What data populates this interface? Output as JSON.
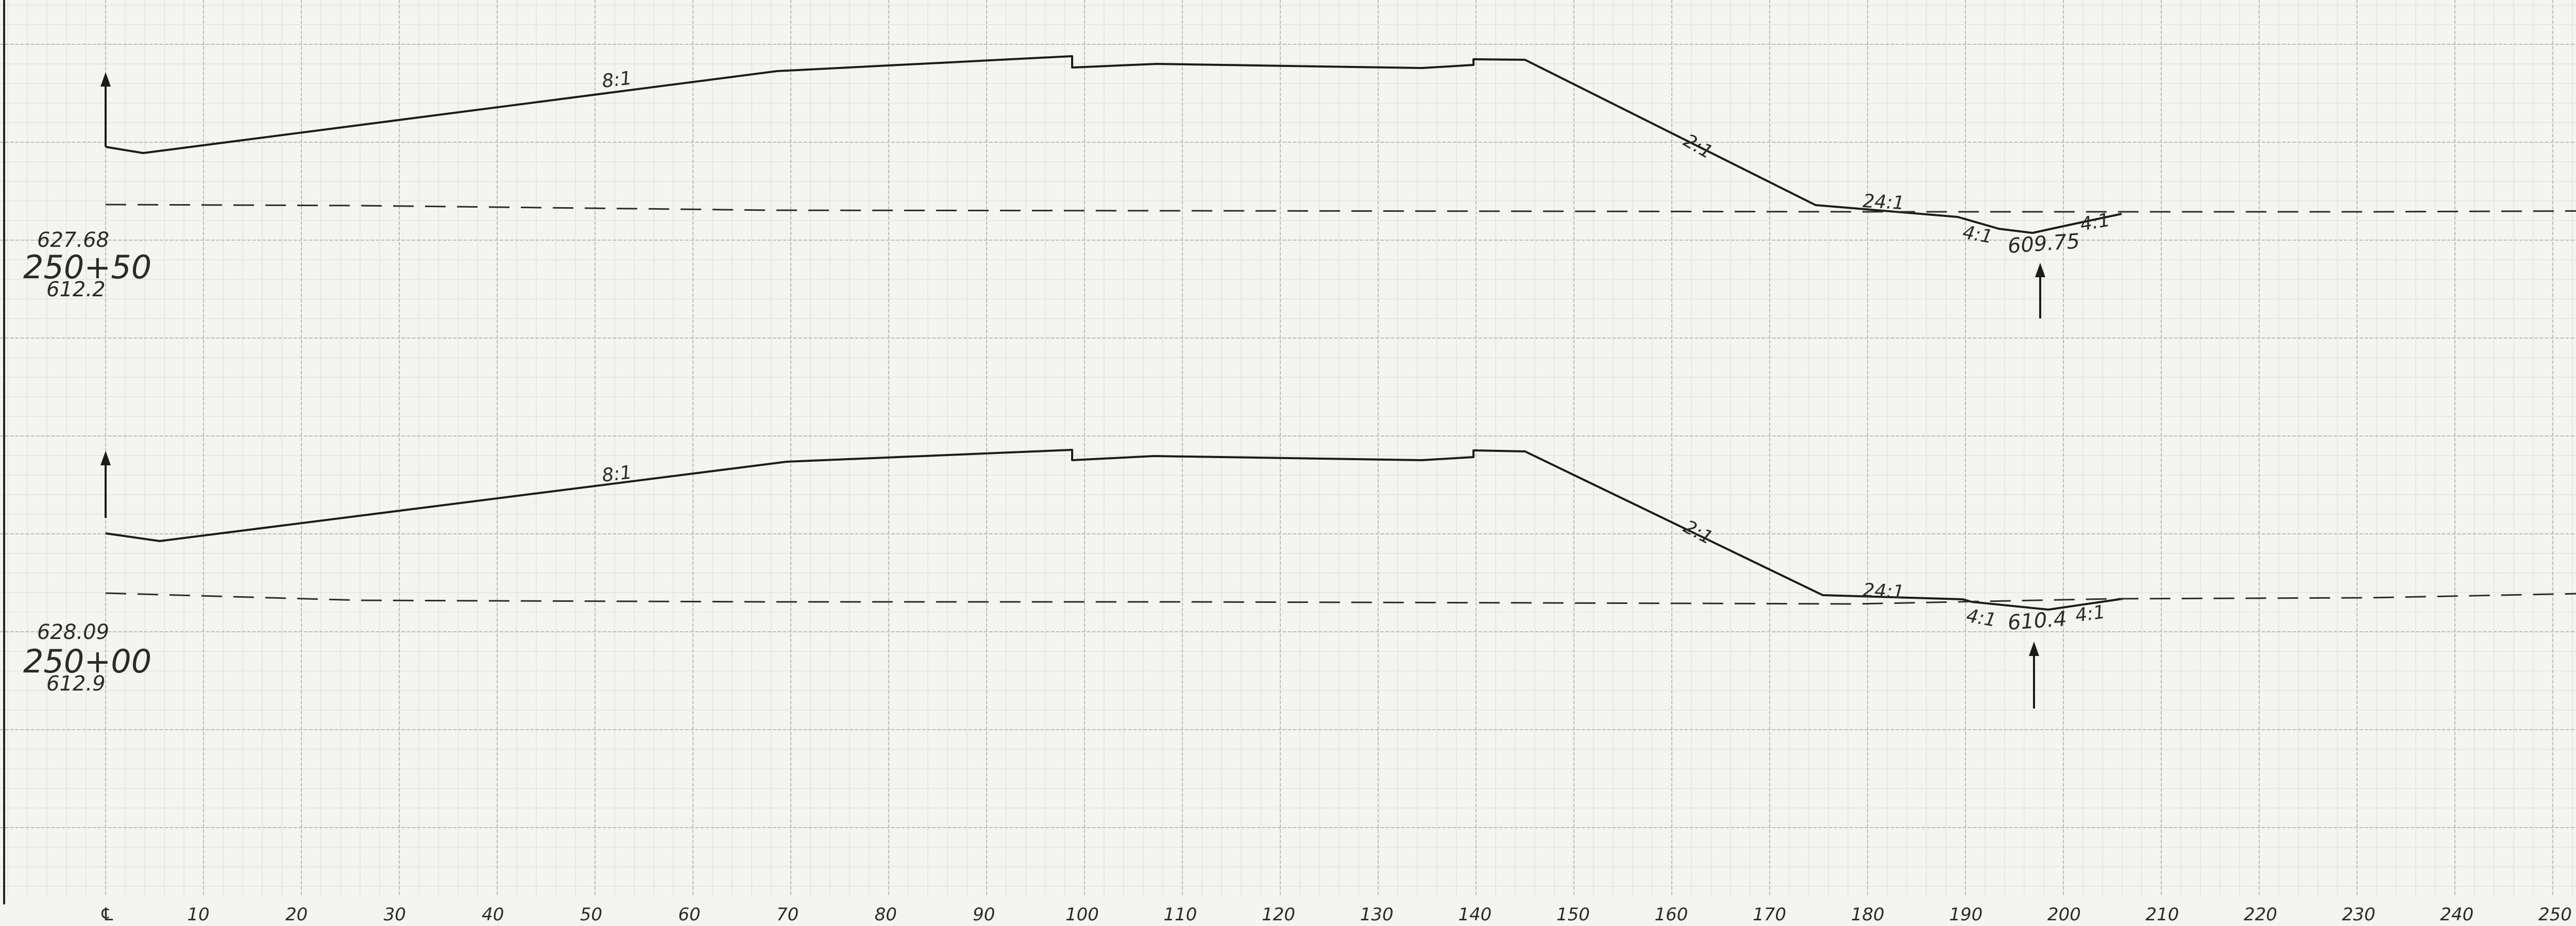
{
  "sections": [
    {
      "id": "upper",
      "station": "250+50",
      "elev_top": "627.68",
      "elev_bottom": "612.2",
      "ditch_elev": "609.75",
      "slopes": {
        "left": "8:1",
        "right": "2:1",
        "ditch_approach": "24:1",
        "ditch_left": "4:1",
        "ditch_right": "4:1"
      }
    },
    {
      "id": "lower",
      "station": "250+00",
      "elev_top": "628.09",
      "elev_bottom": "612.9",
      "ditch_elev": "610.4",
      "slopes": {
        "left": "8:1",
        "right": "2:1",
        "ditch_approach": "24:1",
        "ditch_left": "4:1",
        "ditch_right": "4:1"
      }
    }
  ],
  "axis": {
    "centerline_label": "℄",
    "ticks": [
      "10",
      "20",
      "30",
      "40",
      "50",
      "60",
      "70",
      "80",
      "90",
      "100",
      "110",
      "120",
      "130",
      "140",
      "150",
      "160",
      "170",
      "180",
      "190",
      "200",
      "210",
      "220",
      "230",
      "240",
      "250"
    ]
  }
}
